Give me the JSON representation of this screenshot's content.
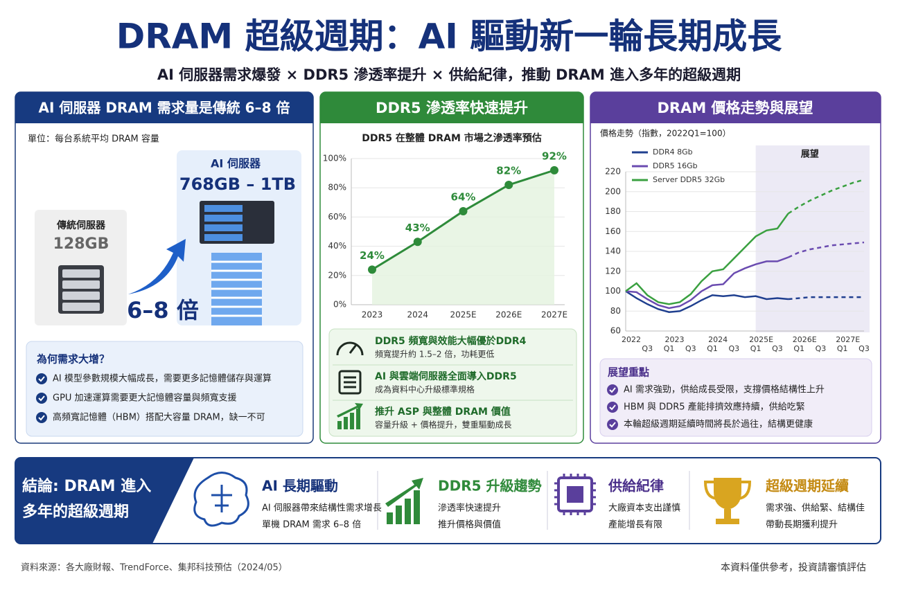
{
  "header": {
    "title": "DRAM 超級週期：AI 驅動新一輪長期成長",
    "subtitle": "AI 伺服器需求爆發 × DDR5 滲透率提升 × 供給紀律，推動 DRAM 進入多年的超級週期"
  },
  "panel1": {
    "title": "AI 伺服器 DRAM 需求量是傳統 6–8 倍",
    "unit": "單位：每台系統平均 DRAM 容量",
    "ai_label": "AI 伺服器",
    "ai_value": "768GB – 1TB",
    "trad_label": "傳統伺服器",
    "trad_value": "128GB",
    "multiplier": "6–8 倍",
    "why_title": "為何需求大增？",
    "why_items": [
      "AI 模型參數規模大幅成長，需要更多記憶體儲存與運算",
      "GPU 加速運算需要更大記憶體容量與頻寬支援",
      "高頻寬記憶體（HBM）搭配大容量 DRAM，缺一不可"
    ]
  },
  "panel2": {
    "title": "DDR5 滲透率快速提升",
    "features": [
      {
        "title": "DDR5 頻寬與效能大幅優於DDR4",
        "desc": "頻寬提升約 1.5–2 倍，功耗更低"
      },
      {
        "title": "AI 與雲端伺服器全面導入DDR5",
        "desc": "成為資料中心升級標準規格"
      },
      {
        "title": "推升 ASP 與整體 DRAM 價值",
        "desc": "容量升級 + 價格提升，雙重驅動成長"
      }
    ]
  },
  "panel3": {
    "title": "DRAM 價格走勢與展望",
    "highlights_title": "展望重點",
    "highlights": [
      "AI 需求強勁，供給成長受限，支撐價格結構性上升",
      "HBM 與 DDR5 產能排擠效應持續，供給吃緊",
      "本輪超級週期延續時間將長於過往，結構更健康"
    ]
  },
  "conclusion": {
    "title_lines": [
      "結論: DRAM 進入",
      "多年的超級週期"
    ],
    "items": [
      {
        "title": "AI 長期驅動",
        "lines": [
          "AI 伺服器帶來結構性需求增長",
          "單機 DRAM 需求 6–8 倍"
        ]
      },
      {
        "title": "DDR5 升級趨勢",
        "lines": [
          "滲透率快速提升",
          "推升價格與價值"
        ]
      },
      {
        "title": "供給紀律",
        "lines": [
          "大廠資本支出謹慎",
          "產能增長有限"
        ]
      },
      {
        "title": "超級週期延續",
        "lines": [
          "需求強、供給緊、結構佳",
          "帶動長期獲利提升"
        ]
      }
    ]
  },
  "footer": {
    "source": "資料來源：各大廠財報、TrendForce、集邦科技預估（2024/05）",
    "disclaimer": "本資料僅供參考，投資請審慎評估"
  },
  "chart_data": [
    {
      "type": "line",
      "title": "DDR5 在整體 DRAM 市場之滲透率預估",
      "categories": [
        "2023",
        "2024",
        "2025E",
        "2026E",
        "2027E"
      ],
      "values": [
        24,
        43,
        64,
        82,
        92
      ],
      "value_labels": [
        "24%",
        "43%",
        "64%",
        "82%",
        "92%"
      ],
      "color": "#2e8b3a",
      "area": true,
      "ylim": [
        0,
        100
      ],
      "yticks": [
        {
          "value": 0,
          "label": "0%"
        },
        {
          "value": 20,
          "label": "20%"
        },
        {
          "value": 40,
          "label": "40%"
        },
        {
          "value": 60,
          "label": "60%"
        },
        {
          "value": 80,
          "label": "80%"
        },
        {
          "value": 100,
          "label": "100%"
        }
      ],
      "grid": true
    },
    {
      "type": "line",
      "ylabel": "價格走勢（指數，2022Q1=100）",
      "x": [
        0,
        1,
        2,
        3,
        4,
        5,
        6,
        7,
        8,
        9,
        10,
        11,
        12,
        13,
        14,
        15,
        16,
        17,
        18,
        19,
        20,
        21,
        22
      ],
      "xlim": [
        0,
        22
      ],
      "xticks": [
        {
          "value": 2,
          "label": "Q3"
        },
        {
          "value": 4,
          "label": "Q1"
        },
        {
          "value": 6,
          "label": "Q3"
        },
        {
          "value": 8,
          "label": "Q1"
        },
        {
          "value": 10,
          "label": "Q3"
        },
        {
          "value": 12,
          "label": "Q1"
        },
        {
          "value": 14,
          "label": "Q3"
        },
        {
          "value": 16,
          "label": "Q1"
        },
        {
          "value": 18,
          "label": "Q3"
        },
        {
          "value": 20,
          "label": "Q1"
        },
        {
          "value": 22,
          "label": "Q3"
        }
      ],
      "year_ticks": [
        {
          "value": 0,
          "label": "2022"
        },
        {
          "value": 4,
          "label": "2023"
        },
        {
          "value": 8,
          "label": "2024"
        },
        {
          "value": 12,
          "label": "2025E"
        },
        {
          "value": 16,
          "label": "2026E"
        },
        {
          "value": 20,
          "label": "2027E"
        }
      ],
      "ylim": [
        60,
        220
      ],
      "yticks": [
        60,
        80,
        100,
        120,
        140,
        160,
        180,
        200,
        220
      ],
      "grid": true,
      "legend": "upper left",
      "forecast_from": 15,
      "shade_from": 12,
      "shade_label": "展望",
      "series": [
        {
          "name": "DDR4 8Gb",
          "color": "#1f3f8f",
          "values": [
            100,
            93,
            87,
            82,
            79,
            80,
            85,
            91,
            96,
            95,
            96,
            94,
            95,
            92,
            93,
            92,
            93,
            94,
            94,
            94,
            94,
            94,
            94
          ]
        },
        {
          "name": "DDR5 16Gb",
          "color": "#6a4bb0",
          "values": [
            100,
            99,
            92,
            86,
            83,
            85,
            91,
            100,
            106,
            107,
            118,
            123,
            127,
            130,
            130,
            134,
            139,
            142,
            144,
            146,
            147,
            148,
            149
          ]
        },
        {
          "name": "Server DDR5 32Gb",
          "color": "#3aa040",
          "values": [
            100,
            108,
            96,
            89,
            87,
            89,
            97,
            110,
            120,
            122,
            133,
            144,
            155,
            161,
            163,
            178,
            185,
            191,
            196,
            201,
            205,
            209,
            212
          ]
        }
      ]
    }
  ]
}
